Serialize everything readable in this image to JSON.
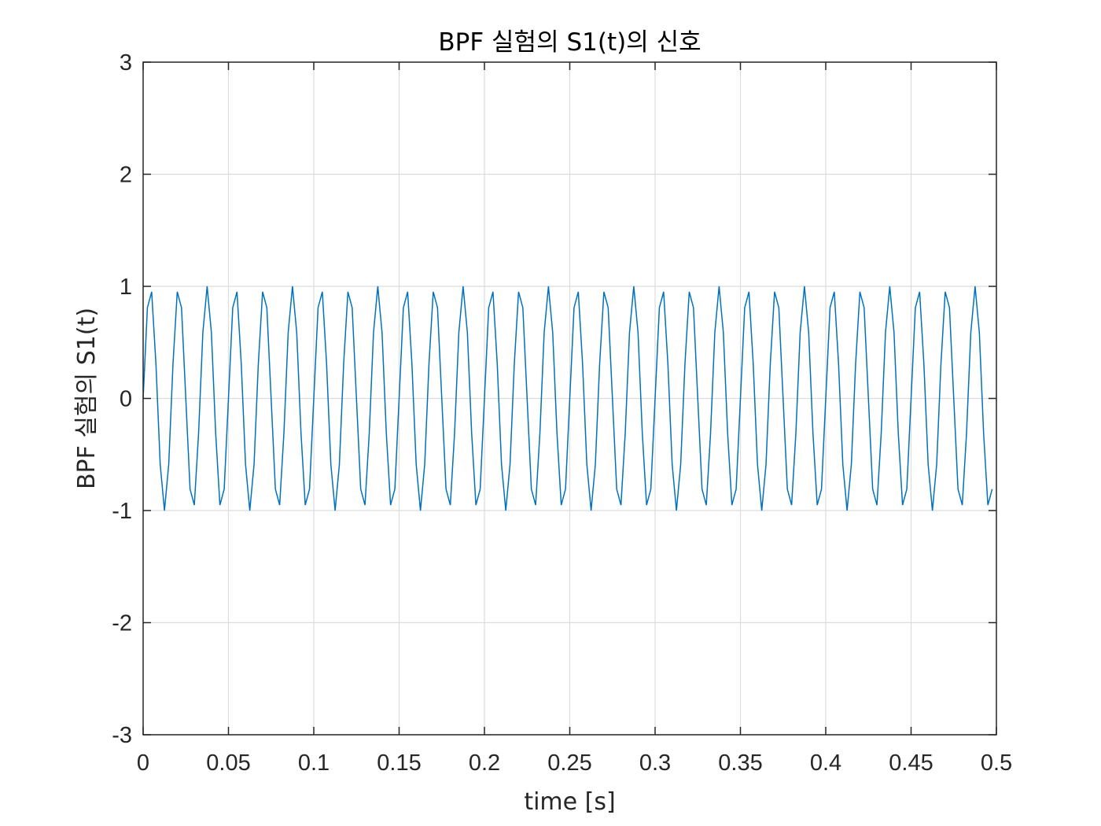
{
  "chart_data": {
    "type": "line",
    "title": "BPF 실험의 S1(t)의 신호",
    "xlabel": "time [s]",
    "ylabel": "BPF 실험의 S1(t)",
    "xlim": [
      0,
      0.5
    ],
    "ylim": [
      -3,
      3
    ],
    "xticks": [
      0,
      0.05,
      0.1,
      0.15,
      0.2,
      0.25,
      0.3,
      0.35,
      0.4,
      0.45,
      0.5
    ],
    "xtick_labels": [
      "0",
      "0.05",
      "0.1",
      "0.15",
      "0.2",
      "0.25",
      "0.3",
      "0.35",
      "0.4",
      "0.45",
      "0.5"
    ],
    "yticks": [
      -3,
      -2,
      -1,
      0,
      1,
      2,
      3
    ],
    "ytick_labels": [
      "-3",
      "-2",
      "-1",
      "0",
      "1",
      "2",
      "3"
    ],
    "grid": true,
    "series": [
      {
        "color": "#0072BD",
        "signal": "sin(2*pi*f*t)",
        "frequency_hz": 60,
        "sampling_rate_hz": 400,
        "t_start": 0,
        "t_end": 0.4975
      }
    ]
  },
  "colors": {
    "line": "#0072BD",
    "grid": "#dcdcdc",
    "axes": "#262626"
  }
}
